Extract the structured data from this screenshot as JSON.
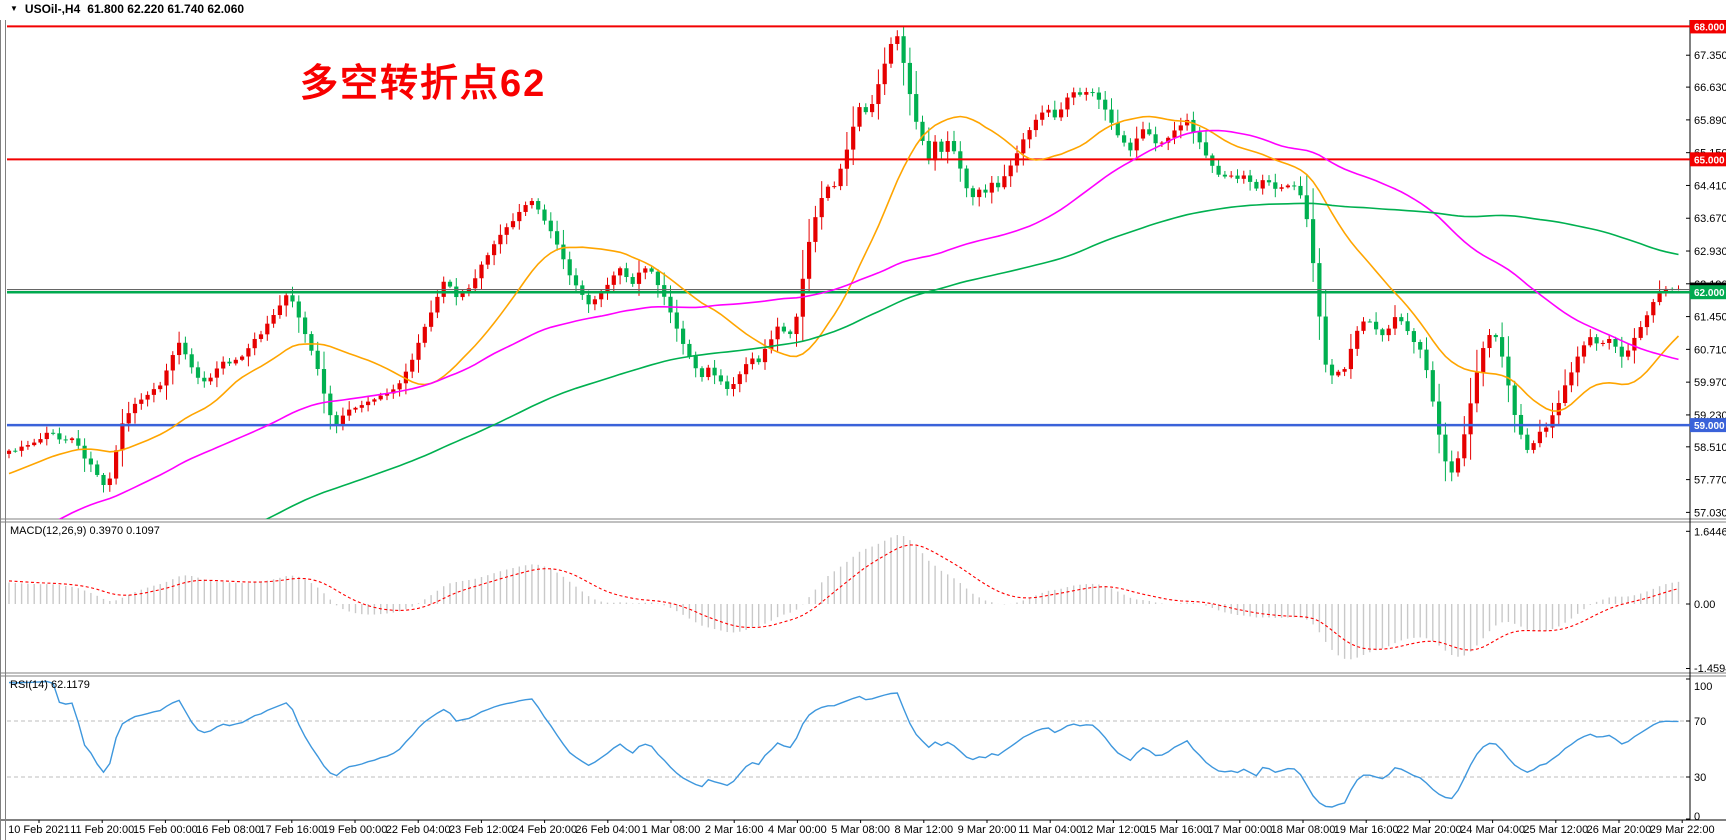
{
  "window": {
    "dropdown_icon": "▼",
    "title_symbol": "USOil-,H4",
    "title_ohlc": "61.800 62.220 61.740 62.060"
  },
  "annotation": {
    "text": "多空转折点62",
    "color": "#f80000"
  },
  "colors": {
    "candle_up": "#e60000",
    "candle_down": "#00b050",
    "ma_fast": "#ffa500",
    "ma_mid": "#ff00ff",
    "ma_slow": "#00b050",
    "level_red": "#f20000",
    "level_green": "#00a94f",
    "level_blue": "#3a62d9",
    "current_price_line": "#666666",
    "macd_histogram": "#c9c9c9",
    "macd_signal": "#ff0000",
    "rsi_line": "#3e97dd",
    "rsi_levels": "#bdbdbd",
    "axis_text": "#000000"
  },
  "chart_data": {
    "type": "candlestick",
    "symbol": "USOil",
    "timeframe": "H4",
    "current_bar": {
      "open": 61.8,
      "high": 62.22,
      "low": 61.74,
      "close": 62.06
    },
    "time_axis_labels": [
      "10 Feb 2021",
      "11 Feb 20:00",
      "15 Feb 00:00",
      "16 Feb 08:00",
      "17 Feb 16:00",
      "19 Feb 00:00",
      "22 Feb 04:00",
      "23 Feb 12:00",
      "24 Feb 20:00",
      "26 Feb 04:00",
      "1 Mar 08:00",
      "2 Mar 16:00",
      "4 Mar 00:00",
      "5 Mar 08:00",
      "8 Mar 12:00",
      "9 Mar 20:00",
      "11 Mar 04:00",
      "12 Mar 12:00",
      "15 Mar 16:00",
      "17 Mar 00:00",
      "18 Mar 08:00",
      "19 Mar 16:00",
      "22 Mar 20:00",
      "24 Mar 04:00",
      "25 Mar 12:00",
      "26 Mar 20:00",
      "29 Mar 22:00"
    ],
    "price_axis_ticks": [
      "67.350",
      "66.630",
      "65.890",
      "65.150",
      "64.410",
      "63.670",
      "62.930",
      "62.190",
      "61.450",
      "60.710",
      "59.970",
      "59.230",
      "58.510",
      "57.770",
      "57.030"
    ],
    "horizontal_levels": [
      {
        "price": 68.0,
        "label": "68.000",
        "color": "#f20000",
        "width": 2
      },
      {
        "price": 65.0,
        "label": "65.000",
        "color": "#f20000",
        "width": 2
      },
      {
        "price": 62.0,
        "label": "62.000",
        "color": "#00a94f",
        "width": 2.5
      },
      {
        "price": 59.0,
        "label": "59.000",
        "color": "#3a62d9",
        "width": 2.5
      }
    ],
    "current_price_marker": {
      "price": 62.06,
      "label": "62.060",
      "box_color": "#000000"
    },
    "price_path_anchors": [
      [
        9,
        58.4
      ],
      [
        36,
        58.6
      ],
      [
        50,
        58.85
      ],
      [
        62,
        58.6
      ],
      [
        74,
        58.7
      ],
      [
        85,
        58.25
      ],
      [
        99,
        57.85
      ],
      [
        106,
        57.5
      ],
      [
        112,
        58.0
      ],
      [
        120,
        58.9
      ],
      [
        130,
        59.35
      ],
      [
        141,
        59.6
      ],
      [
        152,
        59.75
      ],
      [
        162,
        59.95
      ],
      [
        170,
        60.45
      ],
      [
        180,
        60.9
      ],
      [
        188,
        60.5
      ],
      [
        197,
        60.1
      ],
      [
        206,
        59.95
      ],
      [
        215,
        60.25
      ],
      [
        225,
        60.45
      ],
      [
        234,
        60.4
      ],
      [
        243,
        60.6
      ],
      [
        252,
        60.85
      ],
      [
        262,
        61.1
      ],
      [
        272,
        61.45
      ],
      [
        280,
        61.7
      ],
      [
        288,
        62.0
      ],
      [
        294,
        61.7
      ],
      [
        300,
        61.35
      ],
      [
        307,
        60.95
      ],
      [
        314,
        60.55
      ],
      [
        321,
        60.0
      ],
      [
        328,
        59.4
      ],
      [
        334,
        58.95
      ],
      [
        341,
        59.2
      ],
      [
        348,
        59.3
      ],
      [
        358,
        59.45
      ],
      [
        370,
        59.55
      ],
      [
        382,
        59.65
      ],
      [
        394,
        59.8
      ],
      [
        404,
        60.1
      ],
      [
        413,
        60.5
      ],
      [
        421,
        61.0
      ],
      [
        429,
        61.4
      ],
      [
        437,
        61.9
      ],
      [
        444,
        62.25
      ],
      [
        450,
        62.1
      ],
      [
        457,
        61.85
      ],
      [
        464,
        62.0
      ],
      [
        472,
        62.2
      ],
      [
        480,
        62.55
      ],
      [
        489,
        62.9
      ],
      [
        498,
        63.2
      ],
      [
        507,
        63.45
      ],
      [
        516,
        63.7
      ],
      [
        526,
        63.95
      ],
      [
        534,
        64.05
      ],
      [
        541,
        63.8
      ],
      [
        549,
        63.45
      ],
      [
        557,
        63.05
      ],
      [
        566,
        62.6
      ],
      [
        574,
        62.2
      ],
      [
        582,
        61.95
      ],
      [
        590,
        61.7
      ],
      [
        598,
        61.9
      ],
      [
        605,
        62.05
      ],
      [
        612,
        62.35
      ],
      [
        619,
        62.55
      ],
      [
        626,
        62.35
      ],
      [
        633,
        62.2
      ],
      [
        640,
        62.45
      ],
      [
        647,
        62.6
      ],
      [
        653,
        62.4
      ],
      [
        660,
        62.1
      ],
      [
        667,
        61.75
      ],
      [
        674,
        61.35
      ],
      [
        681,
        60.95
      ],
      [
        688,
        60.6
      ],
      [
        695,
        60.3
      ],
      [
        702,
        60.1
      ],
      [
        709,
        60.35
      ],
      [
        716,
        60.1
      ],
      [
        723,
        59.9
      ],
      [
        730,
        59.8
      ],
      [
        737,
        60.05
      ],
      [
        744,
        60.3
      ],
      [
        751,
        60.55
      ],
      [
        758,
        60.4
      ],
      [
        765,
        60.7
      ],
      [
        772,
        61.0
      ],
      [
        779,
        61.25
      ],
      [
        786,
        61.1
      ],
      [
        792,
        61.05
      ],
      [
        797,
        61.5
      ],
      [
        802,
        62.2
      ],
      [
        807,
        62.9
      ],
      [
        812,
        63.4
      ],
      [
        817,
        63.8
      ],
      [
        822,
        64.15
      ],
      [
        827,
        64.4
      ],
      [
        832,
        64.2
      ],
      [
        837,
        64.55
      ],
      [
        843,
        64.95
      ],
      [
        849,
        65.4
      ],
      [
        855,
        65.85
      ],
      [
        861,
        66.25
      ],
      [
        868,
        66.0
      ],
      [
        875,
        66.45
      ],
      [
        882,
        67.0
      ],
      [
        889,
        67.5
      ],
      [
        896,
        67.85
      ],
      [
        901,
        67.5
      ],
      [
        906,
        66.9
      ],
      [
        911,
        66.35
      ],
      [
        917,
        65.8
      ],
      [
        923,
        65.35
      ],
      [
        929,
        65.0
      ],
      [
        935,
        65.4
      ],
      [
        941,
        65.15
      ],
      [
        947,
        65.45
      ],
      [
        953,
        65.25
      ],
      [
        959,
        64.9
      ],
      [
        965,
        64.45
      ],
      [
        971,
        64.1
      ],
      [
        977,
        64.35
      ],
      [
        984,
        64.2
      ],
      [
        991,
        64.5
      ],
      [
        998,
        64.35
      ],
      [
        1005,
        64.65
      ],
      [
        1012,
        64.95
      ],
      [
        1019,
        65.25
      ],
      [
        1026,
        65.55
      ],
      [
        1033,
        65.8
      ],
      [
        1040,
        66.0
      ],
      [
        1047,
        66.2
      ],
      [
        1054,
        65.95
      ],
      [
        1061,
        66.15
      ],
      [
        1068,
        66.4
      ],
      [
        1075,
        66.55
      ],
      [
        1082,
        66.4
      ],
      [
        1089,
        66.6
      ],
      [
        1096,
        66.45
      ],
      [
        1103,
        66.2
      ],
      [
        1110,
        65.9
      ],
      [
        1117,
        65.6
      ],
      [
        1124,
        65.35
      ],
      [
        1131,
        65.2
      ],
      [
        1138,
        65.5
      ],
      [
        1145,
        65.75
      ],
      [
        1152,
        65.5
      ],
      [
        1159,
        65.3
      ],
      [
        1166,
        65.45
      ],
      [
        1173,
        65.6
      ],
      [
        1180,
        65.75
      ],
      [
        1187,
        65.9
      ],
      [
        1194,
        65.6
      ],
      [
        1201,
        65.3
      ],
      [
        1208,
        65.0
      ],
      [
        1215,
        64.75
      ],
      [
        1222,
        64.55
      ],
      [
        1229,
        64.65
      ],
      [
        1236,
        64.5
      ],
      [
        1243,
        64.65
      ],
      [
        1250,
        64.5
      ],
      [
        1257,
        64.35
      ],
      [
        1264,
        64.55
      ],
      [
        1271,
        64.45
      ],
      [
        1278,
        64.25
      ],
      [
        1285,
        64.45
      ],
      [
        1292,
        64.4
      ],
      [
        1299,
        64.3
      ],
      [
        1305,
        63.9
      ],
      [
        1310,
        63.2
      ],
      [
        1315,
        62.3
      ],
      [
        1320,
        61.3
      ],
      [
        1325,
        60.4
      ],
      [
        1330,
        60.0
      ],
      [
        1336,
        60.3
      ],
      [
        1342,
        60.1
      ],
      [
        1348,
        60.55
      ],
      [
        1354,
        60.95
      ],
      [
        1360,
        61.25
      ],
      [
        1366,
        61.45
      ],
      [
        1372,
        61.3
      ],
      [
        1378,
        61.1
      ],
      [
        1384,
        61.0
      ],
      [
        1390,
        61.25
      ],
      [
        1396,
        61.45
      ],
      [
        1402,
        61.3
      ],
      [
        1408,
        61.1
      ],
      [
        1414,
        60.9
      ],
      [
        1420,
        60.75
      ],
      [
        1426,
        60.3
      ],
      [
        1432,
        59.6
      ],
      [
        1438,
        58.9
      ],
      [
        1444,
        58.3
      ],
      [
        1450,
        57.9
      ],
      [
        1456,
        58.1
      ],
      [
        1462,
        58.5
      ],
      [
        1468,
        59.2
      ],
      [
        1474,
        59.9
      ],
      [
        1480,
        60.5
      ],
      [
        1486,
        60.95
      ],
      [
        1492,
        61.15
      ],
      [
        1498,
        60.9
      ],
      [
        1504,
        60.4
      ],
      [
        1510,
        59.7
      ],
      [
        1516,
        59.1
      ],
      [
        1522,
        58.7
      ],
      [
        1528,
        58.4
      ],
      [
        1534,
        58.6
      ],
      [
        1540,
        58.85
      ],
      [
        1548,
        59.0
      ],
      [
        1555,
        59.3
      ],
      [
        1562,
        59.7
      ],
      [
        1569,
        60.1
      ],
      [
        1576,
        60.45
      ],
      [
        1583,
        60.75
      ],
      [
        1590,
        61.0
      ],
      [
        1597,
        60.8
      ],
      [
        1604,
        60.9
      ],
      [
        1611,
        61.0
      ],
      [
        1617,
        60.7
      ],
      [
        1623,
        60.5
      ],
      [
        1629,
        60.75
      ],
      [
        1635,
        61.0
      ],
      [
        1641,
        61.25
      ],
      [
        1647,
        61.5
      ],
      [
        1652,
        61.75
      ],
      [
        1657,
        61.95
      ],
      [
        1662,
        62.1
      ],
      [
        1668,
        62.06
      ],
      [
        1682,
        62.06
      ]
    ],
    "prehistory_bars": 130,
    "prehistory_anchors": [
      [
        0,
        52.2
      ],
      [
        0.15,
        52.9
      ],
      [
        0.3,
        52.5
      ],
      [
        0.45,
        53.2
      ],
      [
        0.55,
        53.6
      ],
      [
        0.65,
        54.8
      ],
      [
        0.75,
        56.0
      ],
      [
        0.85,
        57.2
      ],
      [
        0.93,
        57.95
      ],
      [
        1,
        58.35
      ]
    ],
    "moving_averages": [
      {
        "name": "ma-fast",
        "period": 20,
        "color": "#ffa500"
      },
      {
        "name": "ma-mid",
        "period": 60,
        "color": "#ff00ff"
      },
      {
        "name": "ma-slow",
        "period": 120,
        "color": "#00b050"
      }
    ],
    "macd": {
      "label": "MACD(12,26,9) 0.3970 0.1097",
      "params": [
        12,
        26,
        9
      ],
      "value": 0.397,
      "signal": 0.1097,
      "axis_max": 1.6446,
      "axis_zero": "0.00",
      "axis_min": -1.4594
    },
    "rsi": {
      "label": "RSI(14) 62.1179",
      "period": 14,
      "value": 62.1179,
      "levels": [
        100,
        70,
        30,
        0
      ],
      "overbought": 70,
      "oversold": 30
    }
  }
}
